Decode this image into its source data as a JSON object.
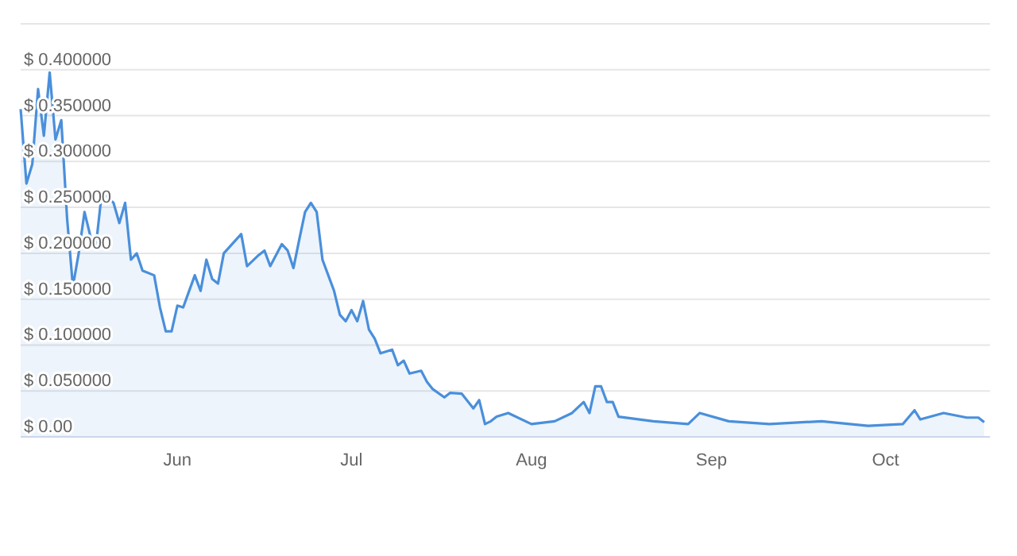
{
  "chart_data": {
    "type": "area",
    "x": [
      "--05-05",
      "--05-06",
      "--05-07",
      "--05-08",
      "--05-09",
      "--05-10",
      "--05-11",
      "--05-12",
      "--05-13",
      "--05-14",
      "--05-15",
      "--05-16",
      "--05-17",
      "--05-18",
      "--05-19",
      "--05-21",
      "--05-22",
      "--05-23",
      "--05-24",
      "--05-25",
      "--05-26",
      "--05-28",
      "--05-29",
      "--05-30",
      "--05-31",
      "--06-01",
      "--06-02",
      "--06-04",
      "--06-05",
      "--06-06",
      "--06-07",
      "--06-08",
      "--06-09",
      "--06-12",
      "--06-13",
      "--06-15",
      "--06-16",
      "--06-17",
      "--06-19",
      "--06-20",
      "--06-21",
      "--06-22",
      "--06-23",
      "--06-24",
      "--06-25",
      "--06-26",
      "--06-27",
      "--06-28",
      "--06-29",
      "--06-30",
      "--07-01",
      "--07-02",
      "--07-03",
      "--07-04",
      "--07-05",
      "--07-06",
      "--07-08",
      "--07-09",
      "--07-10",
      "--07-11",
      "--07-13",
      "--07-14",
      "--07-15",
      "--07-17",
      "--07-18",
      "--07-20",
      "--07-22",
      "--07-23",
      "--07-24",
      "--07-25",
      "--07-26",
      "--07-28",
      "--08-01",
      "--08-05",
      "--08-08",
      "--08-10",
      "--08-11",
      "--08-12",
      "--08-13",
      "--08-14",
      "--08-15",
      "--08-16",
      "--08-22",
      "--08-28",
      "--08-30",
      "--09-04",
      "--09-11",
      "--09-20",
      "--09-28",
      "--10-04",
      "--10-06",
      "--10-07",
      "--10-11",
      "--10-15",
      "--10-17",
      "--10-18"
    ],
    "series": [
      {
        "color": "#4a8fdb",
        "values": [
          0.357,
          0.276,
          0.297,
          0.379,
          0.328,
          0.397,
          0.324,
          0.345,
          0.238,
          0.164,
          0.2,
          0.245,
          0.219,
          0.21,
          0.267,
          0.255,
          0.233,
          0.255,
          0.193,
          0.2,
          0.181,
          0.176,
          0.141,
          0.115,
          0.115,
          0.143,
          0.141,
          0.176,
          0.159,
          0.193,
          0.172,
          0.167,
          0.2,
          0.221,
          0.186,
          0.198,
          0.203,
          0.186,
          0.21,
          0.203,
          0.184,
          0.215,
          0.245,
          0.255,
          0.245,
          0.193,
          0.176,
          0.159,
          0.133,
          0.126,
          0.138,
          0.126,
          0.148,
          0.117,
          0.107,
          0.091,
          0.095,
          0.078,
          0.083,
          0.069,
          0.072,
          0.06,
          0.052,
          0.043,
          0.048,
          0.047,
          0.031,
          0.04,
          0.014,
          0.017,
          0.022,
          0.026,
          0.014,
          0.017,
          0.026,
          0.038,
          0.026,
          0.055,
          0.055,
          0.038,
          0.038,
          0.022,
          0.017,
          0.014,
          0.026,
          0.017,
          0.014,
          0.017,
          0.012,
          0.014,
          0.029,
          0.019,
          0.026,
          0.021,
          0.021,
          0.016
        ]
      }
    ],
    "xlim": [
      "--05-05",
      "--10-19"
    ],
    "xticks": [
      {
        "value": "--06-01",
        "label": "Jun"
      },
      {
        "value": "--07-01",
        "label": "Jul"
      },
      {
        "value": "--08-01",
        "label": "Aug"
      },
      {
        "value": "--09-01",
        "label": "Sep"
      },
      {
        "value": "--10-01",
        "label": "Oct"
      }
    ],
    "ylim": [
      0,
      0.45
    ],
    "yticks": [
      {
        "value": 0,
        "label": "$ 0.00"
      },
      {
        "value": 0.05,
        "label": "$ 0.050000"
      },
      {
        "value": 0.1,
        "label": "$ 0.100000"
      },
      {
        "value": 0.15,
        "label": "$ 0.150000"
      },
      {
        "value": 0.2,
        "label": "$ 0.200000"
      },
      {
        "value": 0.25,
        "label": "$ 0.250000"
      },
      {
        "value": 0.3,
        "label": "$ 0.300000"
      },
      {
        "value": 0.35,
        "label": "$ 0.350000"
      },
      {
        "value": 0.4,
        "label": "$ 0.400000"
      },
      {
        "value": 0.45,
        "label": null
      }
    ],
    "grid": "y"
  }
}
